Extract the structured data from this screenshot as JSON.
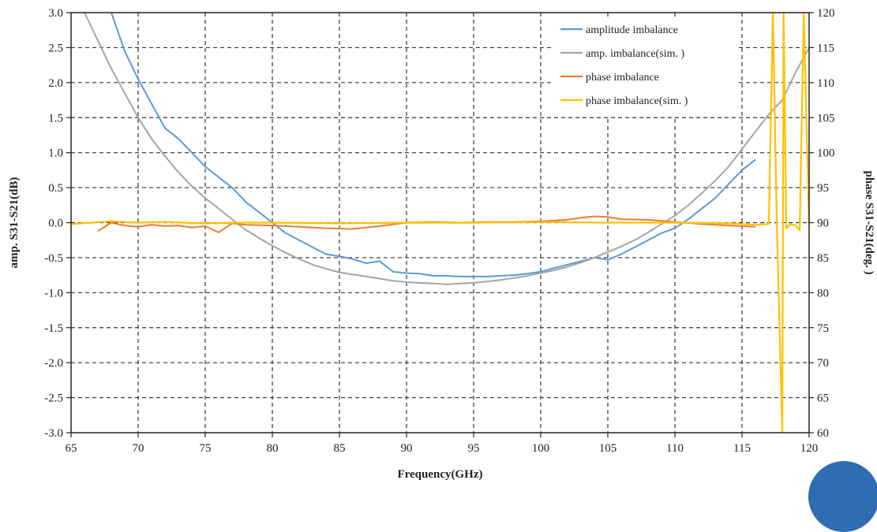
{
  "chart_data": {
    "type": "line",
    "title": "",
    "xlabel": "Frequency(GHz)",
    "ylabel": "amp. S31-S21(dB)",
    "y2label": "phase S31-S21(deg. )",
    "xlim": [
      65,
      120
    ],
    "ylim": [
      -3.0,
      3.0
    ],
    "y2lim": [
      60,
      120
    ],
    "xticks": [
      65,
      70,
      75,
      80,
      85,
      90,
      95,
      100,
      105,
      110,
      115,
      120
    ],
    "yticks": [
      "3.0",
      "2.5",
      "2.0",
      "1.5",
      "1.0",
      "0.5",
      "0.0",
      "-0.5",
      "-1.0",
      "-1.5",
      "-2.0",
      "-2.5",
      "-3.0"
    ],
    "y2ticks": [
      120,
      115,
      110,
      105,
      100,
      95,
      90,
      85,
      80,
      75,
      70,
      65,
      60
    ],
    "grid": true,
    "legend_position": "top-right",
    "series": [
      {
        "name": "amplitude imbalance",
        "axis": "left",
        "color": "#5b9bd5",
        "x": [
          68,
          69,
          70,
          71,
          72,
          73,
          74,
          75,
          76,
          77,
          78,
          79,
          80,
          81,
          82,
          83,
          84,
          85,
          86,
          87,
          88,
          89,
          90,
          91,
          92,
          93,
          94,
          95,
          96,
          97,
          98,
          99,
          100,
          101,
          102,
          103,
          104,
          105,
          106,
          107,
          108,
          109,
          110,
          111,
          112,
          113,
          114,
          115,
          116
        ],
        "y": [
          3.0,
          2.45,
          2.05,
          1.7,
          1.35,
          1.2,
          1.0,
          0.8,
          0.65,
          0.5,
          0.3,
          0.15,
          0.0,
          -0.15,
          -0.25,
          -0.35,
          -0.45,
          -0.48,
          -0.52,
          -0.58,
          -0.55,
          -0.7,
          -0.72,
          -0.73,
          -0.76,
          -0.76,
          -0.77,
          -0.77,
          -0.77,
          -0.76,
          -0.75,
          -0.73,
          -0.7,
          -0.65,
          -0.6,
          -0.55,
          -0.5,
          -0.53,
          -0.45,
          -0.35,
          -0.25,
          -0.15,
          -0.08,
          0.05,
          0.2,
          0.35,
          0.55,
          0.75,
          0.9
        ]
      },
      {
        "name": "amp. imbalance(sim. )",
        "axis": "left",
        "color": "#a5a5a5",
        "x": [
          66,
          67,
          68,
          69,
          70,
          71,
          72,
          73,
          74,
          75,
          76,
          77,
          78,
          79,
          80,
          81,
          82,
          83,
          84,
          85,
          86,
          87,
          88,
          89,
          90,
          91,
          92,
          93,
          94,
          95,
          96,
          97,
          98,
          99,
          100,
          101,
          102,
          103,
          104,
          105,
          106,
          107,
          108,
          109,
          110,
          111,
          112,
          113,
          114,
          115,
          116,
          117,
          118,
          119,
          120
        ],
        "y": [
          3.0,
          2.6,
          2.2,
          1.85,
          1.5,
          1.2,
          0.95,
          0.72,
          0.52,
          0.35,
          0.2,
          0.05,
          -0.1,
          -0.22,
          -0.33,
          -0.43,
          -0.52,
          -0.6,
          -0.66,
          -0.71,
          -0.74,
          -0.77,
          -0.8,
          -0.83,
          -0.85,
          -0.86,
          -0.87,
          -0.88,
          -0.87,
          -0.86,
          -0.84,
          -0.82,
          -0.79,
          -0.76,
          -0.72,
          -0.68,
          -0.63,
          -0.57,
          -0.5,
          -0.42,
          -0.34,
          -0.25,
          -0.14,
          -0.02,
          0.1,
          0.25,
          0.42,
          0.6,
          0.8,
          1.05,
          1.3,
          1.55,
          1.75,
          2.15,
          2.5
        ]
      },
      {
        "name": "phase imbalance",
        "axis": "right",
        "color": "#ed7d31",
        "x": [
          67,
          68,
          69,
          70,
          71,
          72,
          73,
          74,
          75,
          76,
          77,
          78,
          80,
          82,
          84,
          86,
          88,
          90,
          92,
          94,
          96,
          98,
          100,
          102,
          103,
          104,
          105,
          106,
          108,
          110,
          112,
          114,
          116
        ],
        "y": [
          88.8,
          90.0,
          89.6,
          89.4,
          89.7,
          89.5,
          89.6,
          89.3,
          89.5,
          88.6,
          89.9,
          89.7,
          89.6,
          89.4,
          89.2,
          89.1,
          89.5,
          90.0,
          90.1,
          90.0,
          90.1,
          90.1,
          90.2,
          90.4,
          90.7,
          90.9,
          90.8,
          90.5,
          90.4,
          90.1,
          89.8,
          89.6,
          89.4
        ]
      },
      {
        "name": "phase imbalance(sim. )",
        "axis": "right",
        "color": "#ffc000",
        "x": [
          65,
          68,
          70,
          72,
          75,
          78,
          80,
          85,
          90,
          95,
          100,
          105,
          110,
          114,
          116,
          117,
          117.3,
          117.6,
          118,
          118.1,
          118.3,
          118.6,
          119,
          119.3,
          119.6,
          120
        ],
        "y": [
          89.8,
          90.2,
          90.0,
          90.1,
          89.9,
          90.0,
          90.0,
          89.9,
          90.0,
          90.0,
          90.1,
          90.0,
          90.0,
          89.9,
          89.7,
          89.8,
          120.0,
          89.5,
          60.0,
          120.0,
          89.2,
          89.8,
          89.6,
          88.9,
          120.0,
          89.5
        ]
      }
    ]
  }
}
